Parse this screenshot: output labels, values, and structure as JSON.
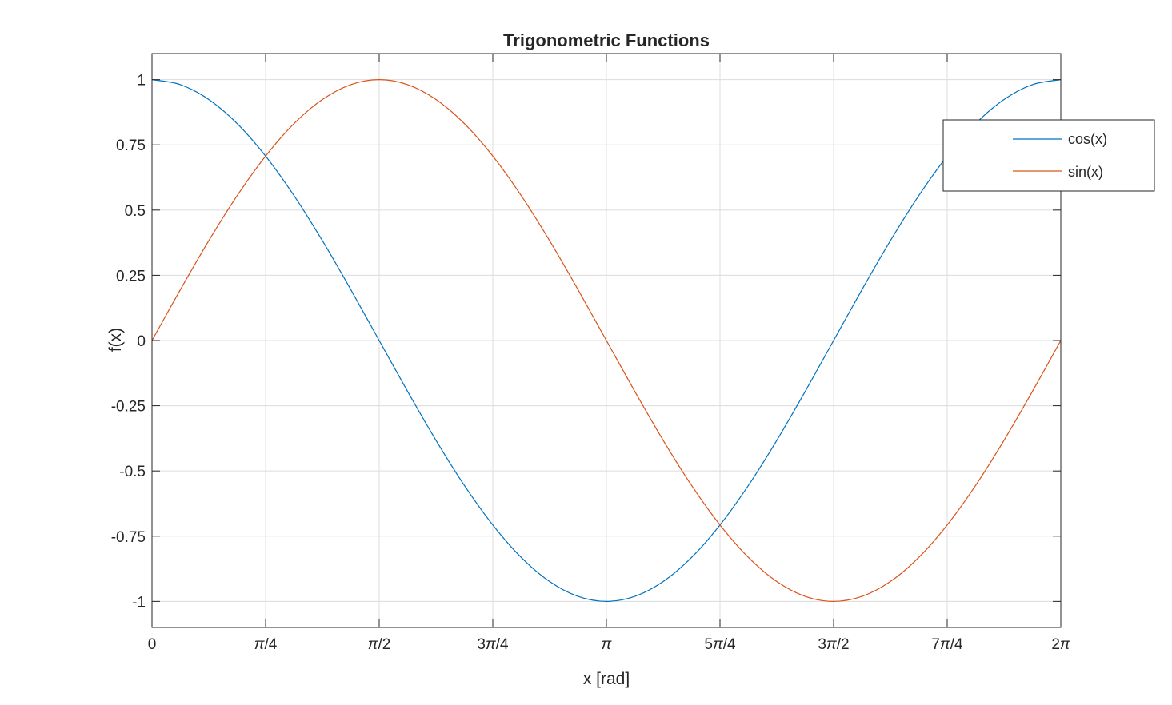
{
  "chart_data": {
    "type": "line",
    "title": "Trigonometric Functions",
    "xlabel": "x [rad]",
    "ylabel": "f(x)",
    "xlim": [
      0,
      6.283185307179586
    ],
    "ylim": [
      -1.1,
      1.1
    ],
    "grid": true,
    "legend_position": "top-right",
    "x_ticks": [
      {
        "value": 0,
        "parts": [
          {
            "t": "0",
            "i": false
          }
        ]
      },
      {
        "value": 0.7853981633974483,
        "parts": [
          {
            "t": "π",
            "i": true
          },
          {
            "t": "/4",
            "i": false
          }
        ]
      },
      {
        "value": 1.5707963267948966,
        "parts": [
          {
            "t": "π",
            "i": true
          },
          {
            "t": "/2",
            "i": false
          }
        ]
      },
      {
        "value": 2.356194490192345,
        "parts": [
          {
            "t": "3",
            "i": false
          },
          {
            "t": "π",
            "i": true
          },
          {
            "t": "/4",
            "i": false
          }
        ]
      },
      {
        "value": 3.141592653589793,
        "parts": [
          {
            "t": "π",
            "i": true
          }
        ]
      },
      {
        "value": 3.9269908169872414,
        "parts": [
          {
            "t": "5",
            "i": false
          },
          {
            "t": "π",
            "i": true
          },
          {
            "t": "/4",
            "i": false
          }
        ]
      },
      {
        "value": 4.71238898038469,
        "parts": [
          {
            "t": "3",
            "i": false
          },
          {
            "t": "π",
            "i": true
          },
          {
            "t": "/2",
            "i": false
          }
        ]
      },
      {
        "value": 5.497787143782138,
        "parts": [
          {
            "t": "7",
            "i": false
          },
          {
            "t": "π",
            "i": true
          },
          {
            "t": "/4",
            "i": false
          }
        ]
      },
      {
        "value": 6.283185307179586,
        "parts": [
          {
            "t": "2",
            "i": false
          },
          {
            "t": "π",
            "i": true
          }
        ]
      }
    ],
    "y_ticks": [
      {
        "value": 1,
        "label": "1"
      },
      {
        "value": 0.75,
        "label": "0.75"
      },
      {
        "value": 0.5,
        "label": "0.5"
      },
      {
        "value": 0.25,
        "label": "0.25"
      },
      {
        "value": 0,
        "label": "0"
      },
      {
        "value": -0.25,
        "label": "-0.25"
      },
      {
        "value": -0.5,
        "label": "-0.5"
      },
      {
        "value": -0.75,
        "label": "-0.75"
      },
      {
        "value": -1,
        "label": "-1"
      }
    ],
    "series": [
      {
        "name": "cos(x)",
        "color": "#0072BD",
        "x": [
          0,
          0.19634954,
          0.39269908,
          0.58904862,
          0.78539816,
          0.9817477,
          1.17809725,
          1.37444679,
          1.57079633,
          1.76714587,
          1.96349541,
          2.15984495,
          2.35619449,
          2.55254403,
          2.74889357,
          2.94524311,
          3.14159265,
          3.33794219,
          3.53429174,
          3.73064128,
          3.92699082,
          4.12334036,
          4.3196899,
          4.51603944,
          4.71238898,
          4.90873852,
          5.10508806,
          5.3014376,
          5.49778714,
          5.69413668,
          5.89048623,
          6.08683577,
          6.28318531
        ],
        "y": [
          1.0,
          0.98079,
          0.92388,
          0.83147,
          0.70711,
          0.55557,
          0.38268,
          0.19509,
          0.0,
          -0.19509,
          -0.38268,
          -0.55557,
          -0.70711,
          -0.83147,
          -0.92388,
          -0.98079,
          -1.0,
          -0.98079,
          -0.92388,
          -0.83147,
          -0.70711,
          -0.55557,
          -0.38268,
          -0.19509,
          0.0,
          0.19509,
          0.38268,
          0.55557,
          0.70711,
          0.83147,
          0.92388,
          0.98079,
          1.0
        ]
      },
      {
        "name": "sin(x)",
        "color": "#D95319",
        "x": [
          0,
          0.19634954,
          0.39269908,
          0.58904862,
          0.78539816,
          0.9817477,
          1.17809725,
          1.37444679,
          1.57079633,
          1.76714587,
          1.96349541,
          2.15984495,
          2.35619449,
          2.55254403,
          2.74889357,
          2.94524311,
          3.14159265,
          3.33794219,
          3.53429174,
          3.73064128,
          3.92699082,
          4.12334036,
          4.3196899,
          4.51603944,
          4.71238898,
          4.90873852,
          5.10508806,
          5.3014376,
          5.49778714,
          5.69413668,
          5.89048623,
          6.08683577,
          6.28318531
        ],
        "y": [
          0.0,
          0.19509,
          0.38268,
          0.55557,
          0.70711,
          0.83147,
          0.92388,
          0.98079,
          1.0,
          0.98079,
          0.92388,
          0.83147,
          0.70711,
          0.55557,
          0.38268,
          0.19509,
          0.0,
          -0.19509,
          -0.38268,
          -0.55557,
          -0.70711,
          -0.83147,
          -0.92388,
          -0.98079,
          -1.0,
          -0.98079,
          -0.92388,
          -0.83147,
          -0.70711,
          -0.55557,
          -0.38268,
          -0.19509,
          0.0
        ]
      }
    ]
  }
}
